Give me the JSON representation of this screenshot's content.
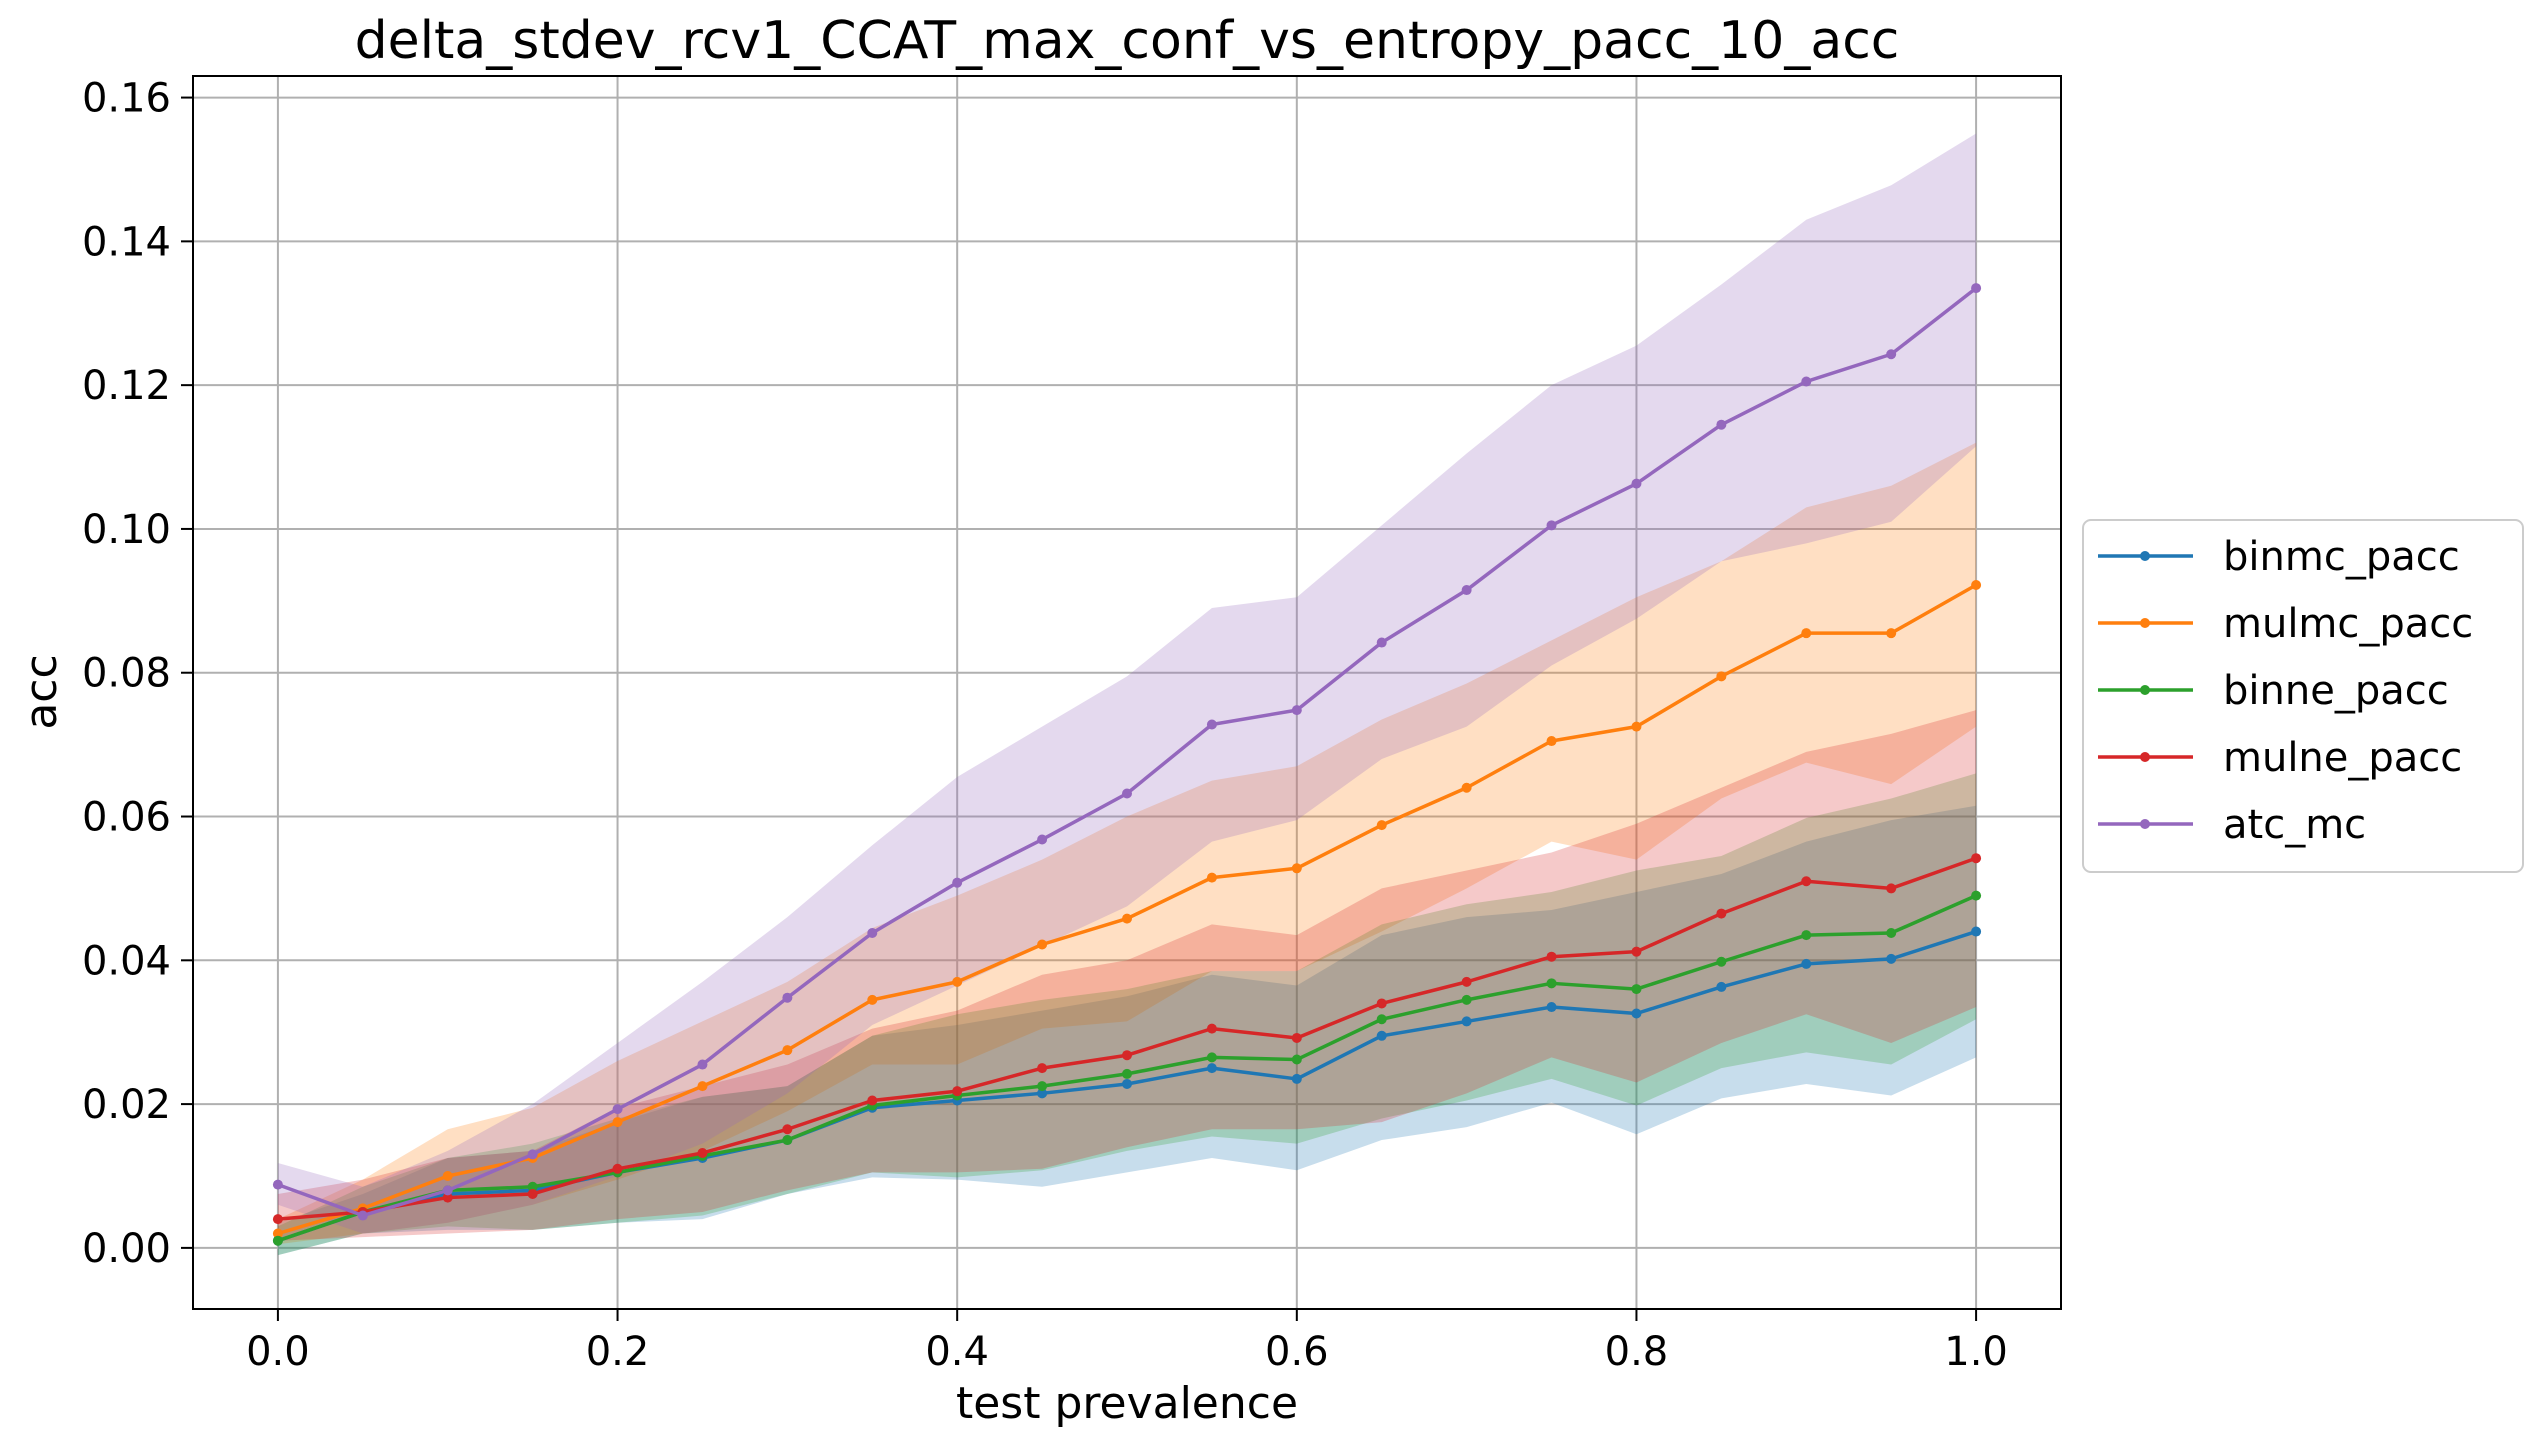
{
  "chart_data": {
    "type": "line",
    "title": "delta_stdev_rcv1_CCAT_max_conf_vs_entropy_pacc_10_acc",
    "xlabel": "test prevalence",
    "ylabel": "acc",
    "xlim": [
      -0.05,
      1.05
    ],
    "ylim": [
      -0.0085,
      0.163
    ],
    "xticks": [
      0.0,
      0.2,
      0.4,
      0.6,
      0.8,
      1.0
    ],
    "xtick_labels": [
      "0.0",
      "0.2",
      "0.4",
      "0.6",
      "0.8",
      "1.0"
    ],
    "yticks": [
      0.0,
      0.02,
      0.04,
      0.06,
      0.08,
      0.1,
      0.12,
      0.14,
      0.16
    ],
    "ytick_labels": [
      "0.00",
      "0.02",
      "0.04",
      "0.06",
      "0.08",
      "0.10",
      "0.12",
      "0.14",
      "0.16"
    ],
    "grid": true,
    "legend_position": "outside-right",
    "x": [
      0.0,
      0.05,
      0.1,
      0.15,
      0.2,
      0.25,
      0.3,
      0.35,
      0.4,
      0.45,
      0.5,
      0.55,
      0.6,
      0.65,
      0.7,
      0.75,
      0.8,
      0.85,
      0.9,
      0.95,
      1.0
    ],
    "series": [
      {
        "name": "binmc_pacc",
        "color": "#1f77b4",
        "values": [
          0.001,
          0.005,
          0.0075,
          0.008,
          0.0105,
          0.0125,
          0.015,
          0.0195,
          0.0205,
          0.0215,
          0.0228,
          0.025,
          0.0235,
          0.0295,
          0.0315,
          0.0335,
          0.0326,
          0.0363,
          0.0395,
          0.0402,
          0.044
        ],
        "band_low": [
          -0.001,
          0.002,
          0.0025,
          0.0025,
          0.0035,
          0.004,
          0.0075,
          0.0098,
          0.0095,
          0.0085,
          0.0105,
          0.0125,
          0.0108,
          0.015,
          0.0168,
          0.0202,
          0.0158,
          0.0208,
          0.0228,
          0.0212,
          0.0265
        ],
        "band_high": [
          0.0035,
          0.0075,
          0.0125,
          0.0135,
          0.0175,
          0.021,
          0.0225,
          0.0295,
          0.031,
          0.033,
          0.035,
          0.038,
          0.0365,
          0.0435,
          0.046,
          0.047,
          0.0495,
          0.052,
          0.0565,
          0.0595,
          0.0615
        ]
      },
      {
        "name": "mulmc_pacc",
        "color": "#ff7f0e",
        "values": [
          0.002,
          0.0055,
          0.01,
          0.0125,
          0.0175,
          0.0225,
          0.0275,
          0.0345,
          0.037,
          0.0422,
          0.0458,
          0.0515,
          0.0528,
          0.0588,
          0.064,
          0.0705,
          0.0725,
          0.0795,
          0.0855,
          0.0855,
          0.0922
        ],
        "band_low": [
          0.0005,
          0.002,
          0.0035,
          0.006,
          0.0095,
          0.0135,
          0.019,
          0.0255,
          0.0255,
          0.0305,
          0.0315,
          0.0385,
          0.0385,
          0.044,
          0.05,
          0.0565,
          0.054,
          0.0625,
          0.0675,
          0.0645,
          0.0725
        ],
        "band_high": [
          0.004,
          0.0095,
          0.0165,
          0.0195,
          0.026,
          0.0315,
          0.037,
          0.0445,
          0.049,
          0.054,
          0.06,
          0.065,
          0.067,
          0.0735,
          0.0785,
          0.0845,
          0.0905,
          0.0955,
          0.103,
          0.106,
          0.112
        ]
      },
      {
        "name": "binne_pacc",
        "color": "#2ca02c",
        "values": [
          0.001,
          0.005,
          0.008,
          0.0085,
          0.0105,
          0.0128,
          0.015,
          0.0198,
          0.0212,
          0.0225,
          0.0242,
          0.0265,
          0.0262,
          0.0318,
          0.0345,
          0.0368,
          0.036,
          0.0398,
          0.0435,
          0.0438,
          0.049
        ],
        "band_low": [
          -0.001,
          0.002,
          0.003,
          0.0025,
          0.0035,
          0.0045,
          0.0075,
          0.0105,
          0.0098,
          0.0108,
          0.0135,
          0.0155,
          0.0145,
          0.018,
          0.0205,
          0.0235,
          0.0198,
          0.025,
          0.0272,
          0.0255,
          0.0318
        ],
        "band_high": [
          0.003,
          0.0085,
          0.0125,
          0.0145,
          0.018,
          0.021,
          0.0225,
          0.0295,
          0.0325,
          0.0345,
          0.036,
          0.0385,
          0.0385,
          0.045,
          0.0478,
          0.0495,
          0.0525,
          0.0545,
          0.0598,
          0.0625,
          0.066
        ]
      },
      {
        "name": "mulne_pacc",
        "color": "#d62728",
        "values": [
          0.004,
          0.005,
          0.007,
          0.0075,
          0.011,
          0.0132,
          0.0165,
          0.0205,
          0.0218,
          0.025,
          0.0268,
          0.0305,
          0.0292,
          0.034,
          0.037,
          0.0405,
          0.0412,
          0.0465,
          0.051,
          0.05,
          0.0542
        ],
        "band_low": [
          0.001,
          0.0015,
          0.002,
          0.0025,
          0.004,
          0.005,
          0.008,
          0.0105,
          0.0105,
          0.011,
          0.014,
          0.0165,
          0.0165,
          0.0175,
          0.0215,
          0.0265,
          0.023,
          0.0285,
          0.0325,
          0.0285,
          0.0335
        ],
        "band_high": [
          0.0075,
          0.0095,
          0.0125,
          0.0135,
          0.0195,
          0.0225,
          0.0255,
          0.0305,
          0.033,
          0.038,
          0.04,
          0.045,
          0.0435,
          0.05,
          0.0525,
          0.055,
          0.059,
          0.064,
          0.069,
          0.0715,
          0.0748
        ]
      },
      {
        "name": "atc_mc",
        "color": "#9467bd",
        "values": [
          0.0088,
          0.0045,
          0.008,
          0.013,
          0.0193,
          0.0255,
          0.0348,
          0.0438,
          0.0508,
          0.0568,
          0.0632,
          0.0728,
          0.0748,
          0.0842,
          0.0915,
          0.1005,
          0.1063,
          0.1145,
          0.1205,
          0.1243,
          0.1335
        ],
        "band_low": [
          0.006,
          0.002,
          0.0035,
          0.006,
          0.01,
          0.0145,
          0.0215,
          0.031,
          0.0365,
          0.042,
          0.0475,
          0.0565,
          0.0595,
          0.068,
          0.0725,
          0.081,
          0.0875,
          0.0955,
          0.098,
          0.101,
          0.1115
        ],
        "band_high": [
          0.0118,
          0.0085,
          0.0135,
          0.02,
          0.0285,
          0.037,
          0.046,
          0.056,
          0.0655,
          0.0725,
          0.0795,
          0.089,
          0.0905,
          0.1005,
          0.1105,
          0.12,
          0.1255,
          0.134,
          0.143,
          0.1478,
          0.155
        ]
      }
    ]
  }
}
